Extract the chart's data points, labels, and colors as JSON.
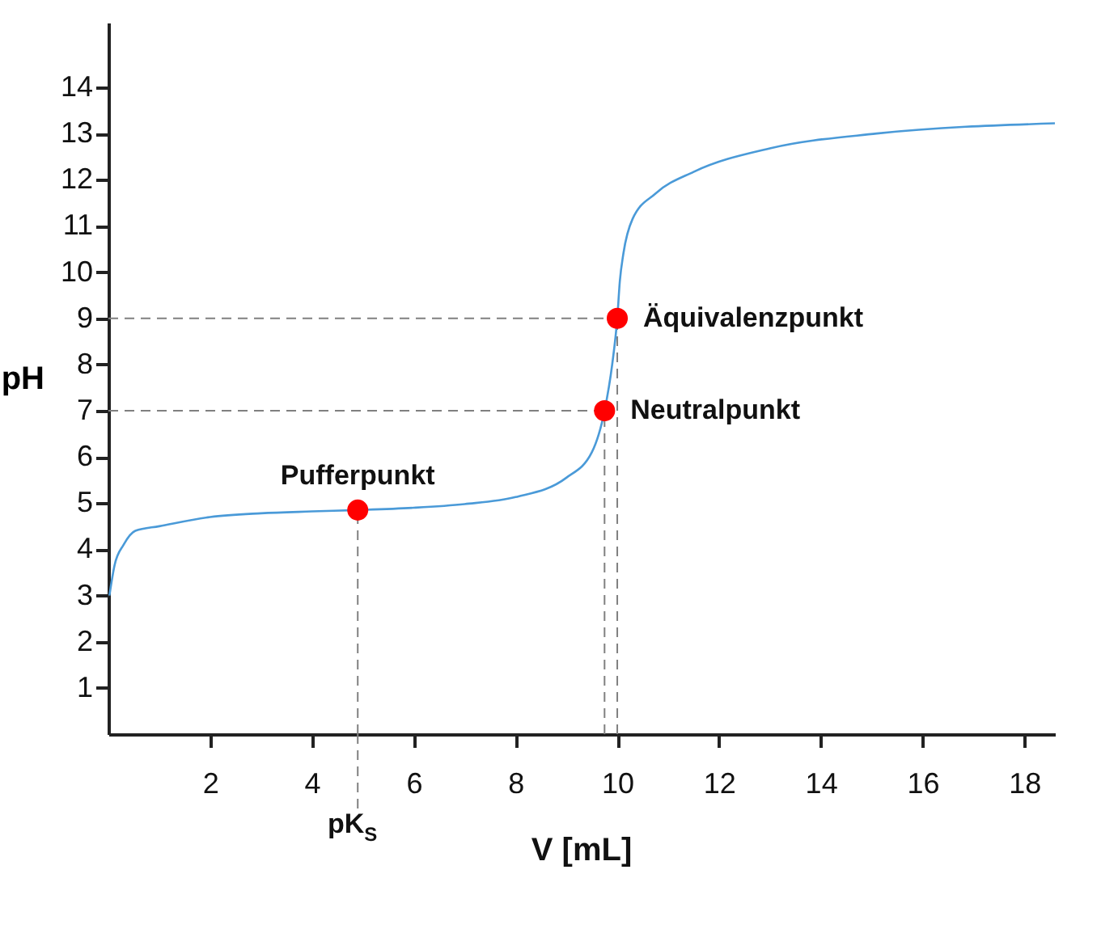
{
  "chart_data": {
    "type": "line",
    "xlabel": "V [mL]",
    "ylabel": "pH",
    "xlim": [
      0,
      18.6
    ],
    "xticks": [
      2,
      4,
      6,
      8,
      10,
      12,
      14,
      16,
      18
    ],
    "ylim": [
      0,
      15.4
    ],
    "yticks": [
      1,
      2,
      3,
      4,
      5,
      6,
      7,
      8,
      9,
      10,
      11,
      12,
      13,
      14
    ],
    "grid": false,
    "series": [
      {
        "type": "line",
        "color": "#4a9ad8",
        "marker": "none",
        "line_style": "solid",
        "x": [
          0.02,
          0.12,
          0.3,
          0.53,
          1,
          2,
          3,
          4,
          4.9,
          6,
          7,
          8,
          9,
          9.5,
          9.75,
          9.9,
          10,
          10.05,
          10.12,
          10.3,
          10.75,
          11.5,
          13,
          15.1,
          18.6
        ],
        "values": [
          3.0,
          3.65,
          4.1,
          4.4,
          4.5,
          4.7,
          4.78,
          4.82,
          4.85,
          4.9,
          4.98,
          5.13,
          5.55,
          6.1,
          7.0,
          8.0,
          9.0,
          9.8,
          10.4,
          11.15,
          11.7,
          12.17,
          12.68,
          13.0,
          13.22
        ]
      },
      {
        "type": "scatter",
        "color": "#ff0000",
        "marker": "circle",
        "x": [
          4.9,
          9.75,
          10
        ],
        "values": [
          4.85,
          7,
          9
        ]
      }
    ],
    "ref_lines": [
      {
        "axis": "y",
        "value": 9,
        "color": "#808080",
        "line_style": "dashed"
      },
      {
        "axis": "y",
        "value": 7,
        "color": "#808080",
        "line_style": "dashed"
      },
      {
        "axis": "x",
        "value": 4.9,
        "color": "#808080",
        "line_style": "dashed",
        "label": "pK$_{S}$"
      },
      {
        "axis": "x",
        "value": 9.75,
        "color": "#808080",
        "line_style": "dashed"
      },
      {
        "axis": "x",
        "value": 10,
        "color": "#808080",
        "line_style": "dashed"
      }
    ],
    "annotations": [
      {
        "text": "Pufferpunkt",
        "x": 4.9,
        "y": 4.85
      },
      {
        "text": "Neutralpunkt",
        "x": 9.75,
        "y": 7
      },
      {
        "text": "Äquivalenzpunkt",
        "x": 10,
        "y": 9
      }
    ]
  }
}
